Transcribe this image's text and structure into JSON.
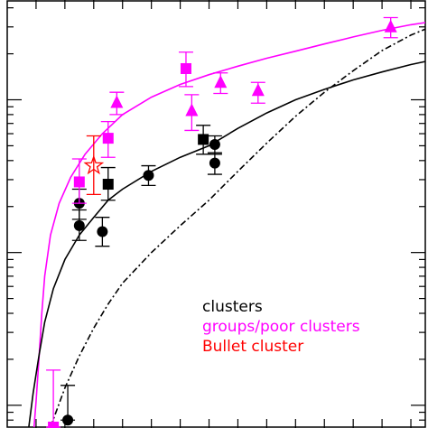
{
  "chart_data": {
    "type": "scatter",
    "title": "",
    "xlabel": "",
    "ylabel": "",
    "x_scale": "linear",
    "y_scale": "log",
    "xlim": [
      0,
      14.5
    ],
    "ylim": [
      0.0071,
      4.5
    ],
    "grid": false,
    "legend_position": "bottom-right",
    "legend": [
      {
        "label": "clusters",
        "color": "#000000"
      },
      {
        "label": "groups/poor clusters",
        "color": "#ff00ff"
      },
      {
        "label": "Bullet cluster",
        "color": "#ff0000"
      }
    ],
    "series": [
      {
        "name": "clusters",
        "color": "#000000",
        "marker": "circle",
        "points": [
          {
            "x": 2.1,
            "y": 0.008,
            "ylo": 0.008,
            "yhi": 0.0135
          },
          {
            "x": 2.5,
            "y": 0.21,
            "ylo": 0.165,
            "yhi": 0.26
          },
          {
            "x": 2.5,
            "y": 0.15,
            "ylo": 0.12,
            "yhi": 0.19
          },
          {
            "x": 3.3,
            "y": 0.137,
            "ylo": 0.11,
            "yhi": 0.17
          },
          {
            "x": 4.9,
            "y": 0.32,
            "ylo": 0.275,
            "yhi": 0.37
          },
          {
            "x": 7.2,
            "y": 0.51,
            "ylo": 0.44,
            "yhi": 0.58
          },
          {
            "x": 7.2,
            "y": 0.385,
            "ylo": 0.325,
            "yhi": 0.45
          }
        ]
      },
      {
        "name": "clusters",
        "color": "#000000",
        "marker": "square",
        "points": [
          {
            "x": 3.5,
            "y": 0.28,
            "ylo": 0.22,
            "yhi": 0.36
          },
          {
            "x": 6.8,
            "y": 0.55,
            "ylo": 0.44,
            "yhi": 0.68
          }
        ]
      },
      {
        "name": "groups/poor clusters",
        "color": "#ff00ff",
        "marker": "square",
        "points": [
          {
            "x": 1.6,
            "y": 0.0072,
            "ylo": 0.0072,
            "yhi": 0.017
          },
          {
            "x": 2.5,
            "y": 0.29,
            "ylo": 0.21,
            "yhi": 0.41
          },
          {
            "x": 3.5,
            "y": 0.56,
            "ylo": 0.42,
            "yhi": 0.72
          },
          {
            "x": 6.2,
            "y": 1.6,
            "ylo": 1.22,
            "yhi": 2.05
          }
        ]
      },
      {
        "name": "groups/poor clusters",
        "color": "#ff00ff",
        "marker": "triangle",
        "points": [
          {
            "x": 3.8,
            "y": 0.96,
            "ylo": 0.8,
            "yhi": 1.12
          },
          {
            "x": 6.4,
            "y": 0.85,
            "ylo": 0.63,
            "yhi": 1.08
          },
          {
            "x": 7.4,
            "y": 1.3,
            "ylo": 1.1,
            "yhi": 1.5
          },
          {
            "x": 8.7,
            "y": 1.15,
            "ylo": 0.95,
            "yhi": 1.3
          },
          {
            "x": 13.3,
            "y": 3.0,
            "ylo": 2.55,
            "yhi": 3.45
          }
        ]
      },
      {
        "name": "Bullet cluster",
        "color": "#ff0000",
        "marker": "star",
        "points": [
          {
            "x": 3.0,
            "y": 0.37,
            "ylo": 0.24,
            "yhi": 0.58
          }
        ]
      }
    ],
    "curves": [
      {
        "name": "magenta model",
        "color": "#ff00ff",
        "style": "solid",
        "points": [
          [
            0.93,
            0.0071
          ],
          [
            1.0,
            0.0105
          ],
          [
            1.1,
            0.02
          ],
          [
            1.2,
            0.04
          ],
          [
            1.3,
            0.07
          ],
          [
            1.5,
            0.13
          ],
          [
            1.8,
            0.21
          ],
          [
            2.2,
            0.31
          ],
          [
            2.7,
            0.44
          ],
          [
            3.3,
            0.6
          ],
          [
            4.0,
            0.8
          ],
          [
            5.0,
            1.04
          ],
          [
            6.0,
            1.26
          ],
          [
            7.0,
            1.46
          ],
          [
            8.0,
            1.66
          ],
          [
            9.0,
            1.87
          ],
          [
            10.0,
            2.08
          ],
          [
            11.0,
            2.32
          ],
          [
            12.0,
            2.58
          ],
          [
            13.0,
            2.85
          ],
          [
            14.0,
            3.1
          ],
          [
            14.5,
            3.2
          ]
        ]
      },
      {
        "name": "black solid model",
        "color": "#000000",
        "style": "solid",
        "points": [
          [
            0.75,
            0.0071
          ],
          [
            0.9,
            0.012
          ],
          [
            1.1,
            0.021
          ],
          [
            1.3,
            0.035
          ],
          [
            1.6,
            0.058
          ],
          [
            2.0,
            0.09
          ],
          [
            2.5,
            0.13
          ],
          [
            3.0,
            0.17
          ],
          [
            3.5,
            0.22
          ],
          [
            4.0,
            0.26
          ],
          [
            5.0,
            0.34
          ],
          [
            6.0,
            0.42
          ],
          [
            7.0,
            0.5
          ],
          [
            8.0,
            0.65
          ],
          [
            9.0,
            0.82
          ],
          [
            10.0,
            1.0
          ],
          [
            11.0,
            1.17
          ],
          [
            12.0,
            1.35
          ],
          [
            13.0,
            1.52
          ],
          [
            14.0,
            1.7
          ],
          [
            14.5,
            1.78
          ]
        ]
      },
      {
        "name": "black dash-dot model",
        "color": "#000000",
        "style": "dashdot",
        "points": [
          [
            1.5,
            0.0071
          ],
          [
            2.0,
            0.013
          ],
          [
            2.5,
            0.021
          ],
          [
            3.0,
            0.032
          ],
          [
            3.5,
            0.046
          ],
          [
            4.0,
            0.063
          ],
          [
            5.0,
            0.1
          ],
          [
            6.0,
            0.15
          ],
          [
            7.0,
            0.22
          ],
          [
            8.0,
            0.34
          ],
          [
            9.0,
            0.52
          ],
          [
            10.0,
            0.78
          ],
          [
            11.0,
            1.12
          ],
          [
            12.0,
            1.55
          ],
          [
            13.0,
            2.1
          ],
          [
            14.0,
            2.65
          ],
          [
            14.5,
            2.9
          ]
        ]
      }
    ]
  }
}
